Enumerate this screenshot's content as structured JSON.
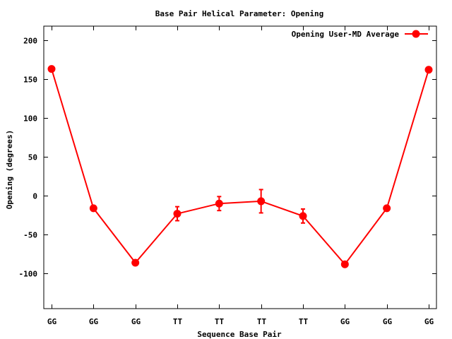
{
  "chart_data": {
    "type": "line",
    "title": "Base Pair Helical Parameter: Opening",
    "xlabel": "Sequence Base Pair",
    "ylabel": "Opening (degrees)",
    "categories": [
      "GG",
      "GG",
      "GG",
      "TT",
      "TT",
      "TT",
      "TT",
      "GG",
      "GG",
      "GG"
    ],
    "ylim": [
      -145,
      218
    ],
    "yticks": [
      200,
      150,
      100,
      50,
      0,
      -50,
      -100
    ],
    "grid": false,
    "legend_position": "top-right",
    "series": [
      {
        "name": "Opening User-MD Average",
        "color": "#ff0000",
        "marker": "filled-circle",
        "values": [
          163,
          -16,
          -86,
          -23,
          -10,
          -7,
          -26,
          -88,
          -16,
          162
        ],
        "errors": [
          0,
          0,
          0,
          9,
          9,
          15,
          9,
          0,
          0,
          0
        ]
      }
    ]
  }
}
